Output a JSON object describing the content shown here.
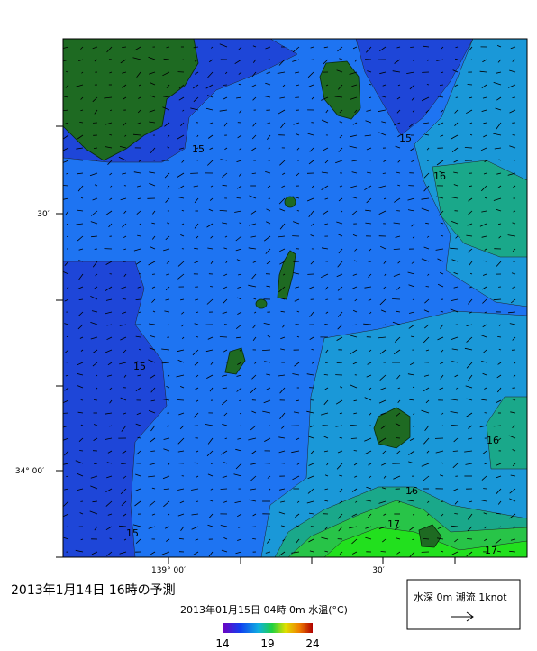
{
  "map": {
    "axis_labels": {
      "y": [
        "30′",
        "34° 00′"
      ],
      "x": [
        "139° 00′",
        "30′"
      ]
    },
    "contour_labels": [
      "15",
      "15",
      "15",
      "15",
      "16",
      "16",
      "16",
      "17",
      "17"
    ],
    "title": "2013年1月14日 16時の予測",
    "subtitle": "2013年01月15日 04時 0m 水温(°C)",
    "colorbar": {
      "range": [
        14,
        24
      ],
      "ticks": [
        14,
        19,
        24
      ]
    },
    "legend": "水深 0m 潮流 1knot"
  }
}
